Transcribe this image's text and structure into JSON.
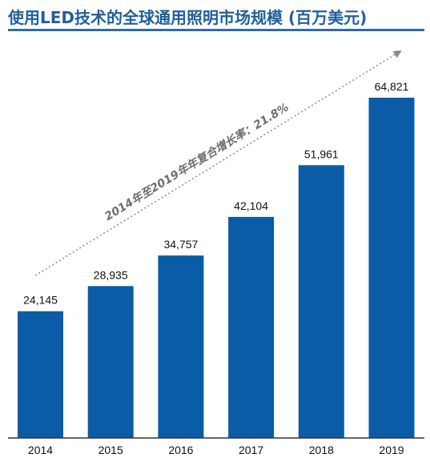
{
  "header": {
    "title": "使用LED技术的全球通用照明市场规模 (百万美元)"
  },
  "colors": {
    "title": "#1f5f9e",
    "title_rule": "#2e6aa7",
    "bar": "#0a5ca7",
    "baseline": "#333333",
    "arrow": "#8a8a8a",
    "annotation": "#6e6e6e"
  },
  "chart_data": {
    "type": "bar",
    "title": "使用LED技术的全球通用照明市场规模 (百万美元)",
    "categories": [
      "2014",
      "2015",
      "2016",
      "2017",
      "2018",
      "2019"
    ],
    "values": [
      24145,
      28935,
      34757,
      42104,
      51961,
      64821
    ],
    "value_labels": [
      "24,145",
      "28,935",
      "34,757",
      "42,104",
      "51,961",
      "64,821"
    ],
    "ylim": [
      0,
      73000
    ],
    "grid": false,
    "legend": "none",
    "annotation": "2014年至2019年年复合增长率：21.8%"
  }
}
